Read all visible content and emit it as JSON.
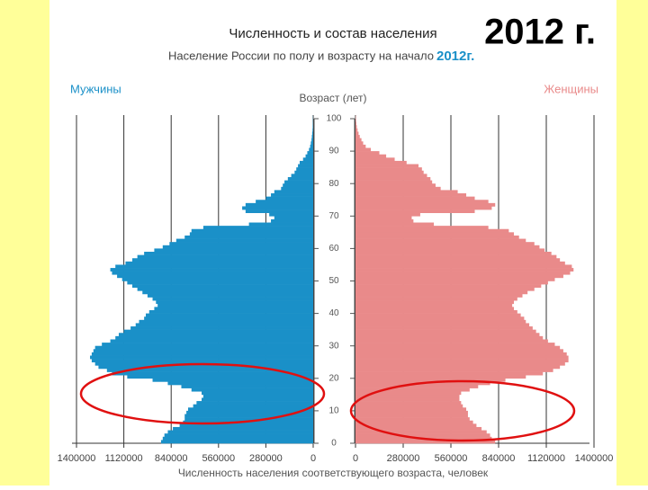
{
  "chart_data": {
    "type": "population_pyramid",
    "title": "Численность и состав населения",
    "subtitle": "Население России по полу и возрасту на начало",
    "subtitle_year": "2012г.",
    "annotation": "2012 г.",
    "y_label": "Возраст (лет)",
    "x_label": "Численность населения соответствующего возраста, человек",
    "x": [
      0,
      1,
      2,
      3,
      4,
      5,
      6,
      7,
      8,
      9,
      10,
      11,
      12,
      13,
      14,
      15,
      16,
      17,
      18,
      19,
      20,
      21,
      22,
      23,
      24,
      25,
      26,
      27,
      28,
      29,
      30,
      31,
      32,
      33,
      34,
      35,
      36,
      37,
      38,
      39,
      40,
      41,
      42,
      43,
      44,
      45,
      46,
      47,
      48,
      49,
      50,
      51,
      52,
      53,
      54,
      55,
      56,
      57,
      58,
      59,
      60,
      61,
      62,
      63,
      64,
      65,
      66,
      67,
      68,
      69,
      70,
      71,
      72,
      73,
      74,
      75,
      76,
      77,
      78,
      79,
      80,
      81,
      82,
      83,
      84,
      85,
      86,
      87,
      88,
      89,
      90,
      91,
      92,
      93,
      94,
      95,
      96,
      97,
      98,
      99,
      100
    ],
    "series": [
      {
        "name": "Мужчины",
        "color": "#1a90c8",
        "side": "left",
        "values": [
          900000,
          890000,
          880000,
          860000,
          830000,
          790000,
          770000,
          760000,
          760000,
          750000,
          740000,
          710000,
          690000,
          660000,
          650000,
          660000,
          720000,
          780000,
          860000,
          950000,
          1100000,
          1190000,
          1220000,
          1270000,
          1290000,
          1310000,
          1320000,
          1310000,
          1300000,
          1290000,
          1250000,
          1200000,
          1170000,
          1150000,
          1120000,
          1080000,
          1050000,
          1030000,
          1000000,
          990000,
          970000,
          940000,
          920000,
          930000,
          950000,
          980000,
          1010000,
          1040000,
          1070000,
          1100000,
          1130000,
          1160000,
          1190000,
          1200000,
          1170000,
          1110000,
          1070000,
          1040000,
          1000000,
          940000,
          890000,
          850000,
          810000,
          760000,
          730000,
          720000,
          650000,
          380000,
          250000,
          230000,
          260000,
          400000,
          420000,
          400000,
          340000,
          280000,
          250000,
          230000,
          190000,
          180000,
          170000,
          150000,
          130000,
          110000,
          100000,
          90000,
          80000,
          60000,
          45000,
          35000,
          25000,
          18000,
          14000,
          10000,
          8000,
          6000,
          4000,
          3000,
          2000,
          1500,
          1000
        ]
      },
      {
        "name": "Женщины",
        "color": "#e98a8a",
        "side": "right",
        "values": [
          820000,
          800000,
          790000,
          770000,
          740000,
          710000,
          690000,
          670000,
          660000,
          660000,
          650000,
          630000,
          620000,
          610000,
          610000,
          620000,
          670000,
          720000,
          790000,
          880000,
          1000000,
          1100000,
          1160000,
          1200000,
          1230000,
          1250000,
          1250000,
          1240000,
          1220000,
          1200000,
          1170000,
          1130000,
          1100000,
          1080000,
          1060000,
          1040000,
          1020000,
          1000000,
          990000,
          970000,
          950000,
          930000,
          920000,
          930000,
          950000,
          980000,
          1010000,
          1050000,
          1090000,
          1130000,
          1170000,
          1220000,
          1260000,
          1280000,
          1270000,
          1230000,
          1200000,
          1180000,
          1150000,
          1110000,
          1080000,
          1050000,
          1000000,
          960000,
          930000,
          900000,
          780000,
          460000,
          340000,
          330000,
          380000,
          700000,
          800000,
          820000,
          780000,
          700000,
          650000,
          600000,
          500000,
          470000,
          450000,
          440000,
          420000,
          400000,
          390000,
          370000,
          300000,
          230000,
          180000,
          140000,
          90000,
          60000,
          45000,
          35000,
          25000,
          18000,
          12000,
          8000,
          5000,
          3500,
          2000
        ]
      }
    ],
    "xlim": [
      0,
      1400000
    ],
    "xticks": [
      0,
      280000,
      560000,
      840000,
      1120000,
      1400000
    ],
    "ylim": [
      0,
      100
    ],
    "yticks": [
      0,
      10,
      20,
      30,
      40,
      50,
      60,
      70,
      80,
      90,
      100
    ],
    "grid": true
  }
}
